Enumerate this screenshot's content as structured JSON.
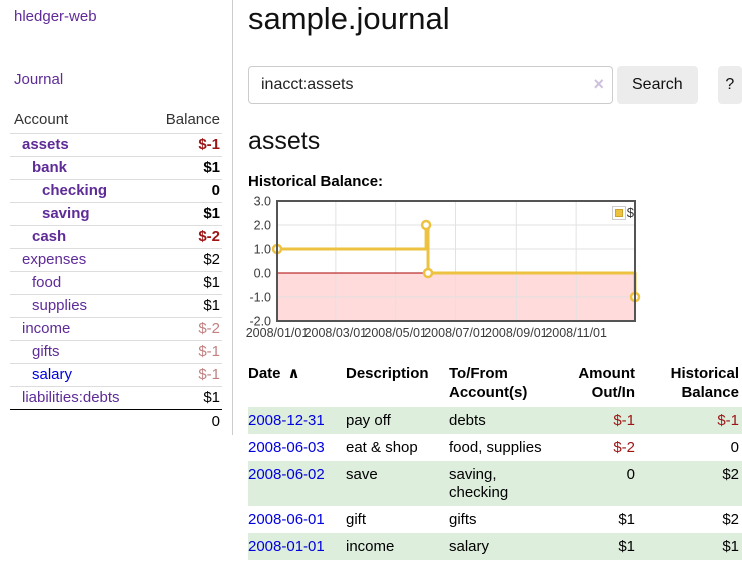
{
  "colors": {
    "link_purple": "#5e2b97",
    "link_blue": "#0000dd",
    "negative": "#9d1414",
    "negative_faded": "#c28181",
    "row_green": "#ddeedd",
    "series_yellow": "#edc240",
    "negative_region": "#ffdbdb",
    "zero_line": "#aa0000"
  },
  "sidebar": {
    "brand": "hledger-web",
    "journal_link": "Journal",
    "accounts": {
      "col_account": "Account",
      "col_balance": "Balance",
      "rows": [
        {
          "name": "assets",
          "indent": 1,
          "bold": true,
          "name_color": "purple",
          "balance": "$-1",
          "balance_color": "negative"
        },
        {
          "name": "bank",
          "indent": 2,
          "bold": true,
          "name_color": "purple",
          "balance": "$1",
          "balance_color": "normal"
        },
        {
          "name": "checking",
          "indent": 3,
          "bold": true,
          "name_color": "purple",
          "balance": "0",
          "balance_color": "normal"
        },
        {
          "name": "saving",
          "indent": 3,
          "bold": true,
          "name_color": "purple",
          "balance": "$1",
          "balance_color": "normal"
        },
        {
          "name": "cash",
          "indent": 2,
          "bold": true,
          "name_color": "purple",
          "balance": "$-2",
          "balance_color": "negative"
        },
        {
          "name": "expenses",
          "indent": 1,
          "bold": false,
          "name_color": "purple",
          "balance": "$2",
          "balance_color": "normal"
        },
        {
          "name": "food",
          "indent": 2,
          "bold": false,
          "name_color": "purple",
          "balance": "$1",
          "balance_color": "normal"
        },
        {
          "name": "supplies",
          "indent": 2,
          "bold": false,
          "name_color": "purple",
          "balance": "$1",
          "balance_color": "normal"
        },
        {
          "name": "income",
          "indent": 1,
          "bold": false,
          "name_color": "purple",
          "balance": "$-2",
          "balance_color": "negative_faded"
        },
        {
          "name": "gifts",
          "indent": 2,
          "bold": false,
          "name_color": "purple",
          "balance": "$-1",
          "balance_color": "negative_faded"
        },
        {
          "name": "salary",
          "indent": 2,
          "bold": false,
          "name_color": "blue",
          "balance": "$-1",
          "balance_color": "negative_faded"
        },
        {
          "name": "liabilities:debts",
          "indent": 1,
          "bold": false,
          "name_color": "purple",
          "balance": "$1",
          "balance_color": "normal"
        }
      ],
      "total": "0"
    }
  },
  "main": {
    "title": "sample.journal",
    "search": {
      "value": "inacct:assets",
      "clear": "×",
      "button": "Search",
      "help": "?"
    },
    "account_heading": "assets",
    "chart_title": "Historical Balance:"
  },
  "chart_data": {
    "type": "line",
    "step": true,
    "title": "Historical Balance of assets",
    "x_range": [
      "2008-01-01",
      "2008-12-31"
    ],
    "ylim": [
      -2,
      3
    ],
    "y_ticks": [
      3,
      2,
      1,
      0,
      -1,
      -2
    ],
    "x_ticks": [
      "2008/01/01",
      "2008/03/01",
      "2008/05/01",
      "2008/07/01",
      "2008/09/01",
      "2008/11/01"
    ],
    "series": [
      {
        "name": "$",
        "color": "#edc240",
        "points": [
          [
            "2008-01-01",
            1
          ],
          [
            "2008-06-01",
            2
          ],
          [
            "2008-06-03",
            0
          ],
          [
            "2008-12-31",
            -1
          ]
        ]
      }
    ],
    "legend_position": "top-right",
    "grid": true
  },
  "register": {
    "columns": [
      {
        "label": "Date",
        "align": "left",
        "sorted_asc": true
      },
      {
        "label": "Description",
        "align": "left"
      },
      {
        "label": "To/From Account(s)",
        "align": "left"
      },
      {
        "label": "Amount Out/In",
        "align": "right"
      },
      {
        "label": "Historical Balance",
        "align": "right"
      }
    ],
    "sort_icon": "∧",
    "rows": [
      {
        "date": "2008-12-31",
        "description": "pay off",
        "accounts": "debts",
        "amount": "$-1",
        "amount_negative": true,
        "balance": "$-1",
        "balance_negative": true,
        "shaded": true
      },
      {
        "date": "2008-06-03",
        "description": "eat & shop",
        "accounts": "food, supplies",
        "amount": "$-2",
        "amount_negative": true,
        "balance": "0",
        "balance_negative": false,
        "shaded": false
      },
      {
        "date": "2008-06-02",
        "description": "save",
        "accounts": "saving, checking",
        "amount": "0",
        "amount_negative": false,
        "balance": "$2",
        "balance_negative": false,
        "shaded": true
      },
      {
        "date": "2008-06-01",
        "description": "gift",
        "accounts": "gifts",
        "amount": "$1",
        "amount_negative": false,
        "balance": "$2",
        "balance_negative": false,
        "shaded": false
      },
      {
        "date": "2008-01-01",
        "description": "income",
        "accounts": "salary",
        "amount": "$1",
        "amount_negative": false,
        "balance": "$1",
        "balance_negative": false,
        "shaded": true
      }
    ]
  }
}
